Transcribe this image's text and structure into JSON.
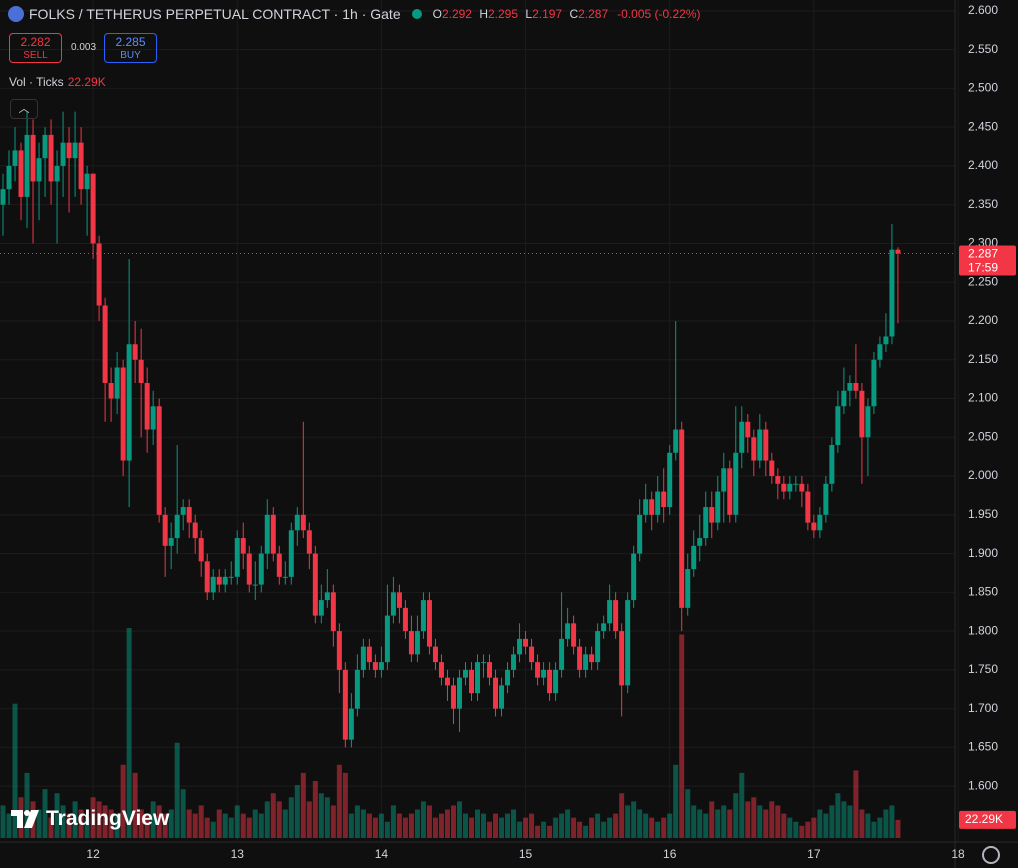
{
  "header": {
    "symbol": "FOLKS / TETHERUS PERPETUAL CONTRACT · 1h · Gate",
    "ohlc": [
      {
        "key": "O",
        "value": "2.292"
      },
      {
        "key": "H",
        "value": "2.295"
      },
      {
        "key": "L",
        "value": "2.197"
      },
      {
        "key": "C",
        "value": "2.287"
      }
    ],
    "change": "-0.005 (-0.22%)"
  },
  "trade": {
    "sell_price": "2.282",
    "sell_label": "SELL",
    "spread": "0.003",
    "buy_price": "2.285",
    "buy_label": "BUY"
  },
  "volume_legend": {
    "label": "Vol · Ticks",
    "value": "22.29K"
  },
  "brand": "TradingView",
  "chart_data": {
    "type": "candlestick",
    "up_color": "#089981",
    "down_color": "#f23645",
    "grid": true,
    "countdown": "17:59",
    "xlim": [
      -0.5,
      158.5
    ],
    "xticks": [
      {
        "value": 15,
        "label": "12"
      },
      {
        "value": 39,
        "label": "13"
      },
      {
        "value": 63,
        "label": "14"
      },
      {
        "value": 87,
        "label": "15"
      },
      {
        "value": 111,
        "label": "16"
      },
      {
        "value": 135,
        "label": "17"
      },
      {
        "value": 159,
        "label": "18"
      }
    ],
    "ylim": [
      1.528,
      2.614
    ],
    "yticks": [
      {
        "value": 1.6,
        "label": "1.600"
      },
      {
        "value": 1.65,
        "label": "1.650"
      },
      {
        "value": 1.7,
        "label": "1.700"
      },
      {
        "value": 1.75,
        "label": "1.750"
      },
      {
        "value": 1.8,
        "label": "1.800"
      },
      {
        "value": 1.85,
        "label": "1.850"
      },
      {
        "value": 1.9,
        "label": "1.900"
      },
      {
        "value": 1.95,
        "label": "1.950"
      },
      {
        "value": 2.0,
        "label": "2.000"
      },
      {
        "value": 2.05,
        "label": "2.050"
      },
      {
        "value": 2.1,
        "label": "2.100"
      },
      {
        "value": 2.15,
        "label": "2.150"
      },
      {
        "value": 2.2,
        "label": "2.200"
      },
      {
        "value": 2.25,
        "label": "2.250"
      },
      {
        "value": 2.3,
        "label": "2.300"
      },
      {
        "value": 2.35,
        "label": "2.350"
      },
      {
        "value": 2.4,
        "label": "2.400"
      },
      {
        "value": 2.45,
        "label": "2.450"
      },
      {
        "value": 2.5,
        "label": "2.500"
      },
      {
        "value": 2.55,
        "label": "2.550"
      },
      {
        "value": 2.6,
        "label": "2.600"
      }
    ],
    "candles": [
      [
        2.35,
        2.39,
        2.31,
        2.37
      ],
      [
        2.37,
        2.42,
        2.35,
        2.4
      ],
      [
        2.4,
        2.45,
        2.38,
        2.42
      ],
      [
        2.42,
        2.43,
        2.33,
        2.36
      ],
      [
        2.36,
        2.47,
        2.32,
        2.44
      ],
      [
        2.44,
        2.46,
        2.3,
        2.38
      ],
      [
        2.38,
        2.43,
        2.33,
        2.41
      ],
      [
        2.41,
        2.45,
        2.36,
        2.44
      ],
      [
        2.44,
        2.46,
        2.35,
        2.38
      ],
      [
        2.38,
        2.42,
        2.3,
        2.4
      ],
      [
        2.4,
        2.47,
        2.36,
        2.43
      ],
      [
        2.43,
        2.45,
        2.34,
        2.41
      ],
      [
        2.41,
        2.47,
        2.36,
        2.43
      ],
      [
        2.43,
        2.45,
        2.35,
        2.37
      ],
      [
        2.37,
        2.4,
        2.31,
        2.39
      ],
      [
        2.39,
        2.39,
        2.28,
        2.3
      ],
      [
        2.3,
        2.31,
        2.2,
        2.22
      ],
      [
        2.22,
        2.23,
        2.07,
        2.12
      ],
      [
        2.12,
        2.14,
        2.07,
        2.1
      ],
      [
        2.1,
        2.16,
        2.08,
        2.14
      ],
      [
        2.14,
        2.15,
        2.0,
        2.02
      ],
      [
        2.02,
        2.28,
        1.96,
        2.17
      ],
      [
        2.17,
        2.2,
        2.12,
        2.15
      ],
      [
        2.15,
        2.19,
        2.05,
        2.12
      ],
      [
        2.12,
        2.14,
        2.03,
        2.06
      ],
      [
        2.06,
        2.11,
        2.04,
        2.09
      ],
      [
        2.09,
        2.1,
        1.94,
        1.95
      ],
      [
        1.95,
        1.96,
        1.87,
        1.91
      ],
      [
        1.91,
        1.94,
        1.88,
        1.92
      ],
      [
        1.92,
        2.04,
        1.9,
        1.95
      ],
      [
        1.95,
        1.97,
        1.93,
        1.96
      ],
      [
        1.96,
        1.97,
        1.92,
        1.94
      ],
      [
        1.94,
        1.95,
        1.9,
        1.92
      ],
      [
        1.92,
        1.93,
        1.87,
        1.89
      ],
      [
        1.89,
        1.9,
        1.84,
        1.85
      ],
      [
        1.85,
        1.88,
        1.84,
        1.87
      ],
      [
        1.87,
        1.88,
        1.85,
        1.86
      ],
      [
        1.86,
        1.88,
        1.85,
        1.87
      ],
      [
        1.87,
        1.89,
        1.86,
        1.87
      ],
      [
        1.87,
        1.93,
        1.86,
        1.92
      ],
      [
        1.92,
        1.94,
        1.88,
        1.9
      ],
      [
        1.9,
        1.91,
        1.85,
        1.86
      ],
      [
        1.86,
        1.89,
        1.84,
        1.86
      ],
      [
        1.86,
        1.91,
        1.85,
        1.9
      ],
      [
        1.9,
        1.97,
        1.88,
        1.95
      ],
      [
        1.95,
        1.96,
        1.89,
        1.9
      ],
      [
        1.9,
        1.91,
        1.86,
        1.87
      ],
      [
        1.87,
        1.89,
        1.86,
        1.87
      ],
      [
        1.87,
        1.94,
        1.86,
        1.93
      ],
      [
        1.93,
        1.96,
        1.91,
        1.95
      ],
      [
        1.95,
        2.07,
        1.92,
        1.93
      ],
      [
        1.93,
        1.94,
        1.88,
        1.9
      ],
      [
        1.9,
        1.91,
        1.81,
        1.82
      ],
      [
        1.82,
        1.86,
        1.81,
        1.84
      ],
      [
        1.84,
        1.88,
        1.83,
        1.85
      ],
      [
        1.85,
        1.86,
        1.78,
        1.8
      ],
      [
        1.8,
        1.81,
        1.72,
        1.75
      ],
      [
        1.75,
        1.76,
        1.65,
        1.66
      ],
      [
        1.66,
        1.72,
        1.65,
        1.7
      ],
      [
        1.7,
        1.77,
        1.69,
        1.75
      ],
      [
        1.75,
        1.79,
        1.74,
        1.78
      ],
      [
        1.78,
        1.79,
        1.75,
        1.76
      ],
      [
        1.76,
        1.77,
        1.74,
        1.75
      ],
      [
        1.75,
        1.78,
        1.74,
        1.76
      ],
      [
        1.76,
        1.86,
        1.75,
        1.82
      ],
      [
        1.82,
        1.87,
        1.81,
        1.85
      ],
      [
        1.85,
        1.86,
        1.81,
        1.83
      ],
      [
        1.83,
        1.84,
        1.79,
        1.8
      ],
      [
        1.8,
        1.82,
        1.76,
        1.77
      ],
      [
        1.77,
        1.82,
        1.76,
        1.8
      ],
      [
        1.8,
        1.85,
        1.79,
        1.84
      ],
      [
        1.84,
        1.85,
        1.77,
        1.78
      ],
      [
        1.78,
        1.79,
        1.75,
        1.76
      ],
      [
        1.76,
        1.77,
        1.73,
        1.74
      ],
      [
        1.74,
        1.75,
        1.71,
        1.73
      ],
      [
        1.73,
        1.74,
        1.68,
        1.7
      ],
      [
        1.7,
        1.75,
        1.67,
        1.74
      ],
      [
        1.74,
        1.76,
        1.73,
        1.75
      ],
      [
        1.75,
        1.76,
        1.71,
        1.72
      ],
      [
        1.72,
        1.77,
        1.71,
        1.76
      ],
      [
        1.76,
        1.77,
        1.74,
        1.76
      ],
      [
        1.76,
        1.77,
        1.73,
        1.74
      ],
      [
        1.74,
        1.75,
        1.69,
        1.7
      ],
      [
        1.7,
        1.74,
        1.69,
        1.73
      ],
      [
        1.73,
        1.76,
        1.72,
        1.75
      ],
      [
        1.75,
        1.78,
        1.74,
        1.77
      ],
      [
        1.77,
        1.81,
        1.76,
        1.79
      ],
      [
        1.79,
        1.8,
        1.77,
        1.78
      ],
      [
        1.78,
        1.79,
        1.75,
        1.76
      ],
      [
        1.76,
        1.77,
        1.73,
        1.74
      ],
      [
        1.74,
        1.76,
        1.73,
        1.75
      ],
      [
        1.75,
        1.76,
        1.71,
        1.72
      ],
      [
        1.72,
        1.76,
        1.71,
        1.75
      ],
      [
        1.75,
        1.85,
        1.74,
        1.79
      ],
      [
        1.79,
        1.83,
        1.78,
        1.81
      ],
      [
        1.81,
        1.82,
        1.77,
        1.78
      ],
      [
        1.78,
        1.79,
        1.74,
        1.75
      ],
      [
        1.75,
        1.78,
        1.74,
        1.77
      ],
      [
        1.77,
        1.78,
        1.75,
        1.76
      ],
      [
        1.76,
        1.81,
        1.75,
        1.8
      ],
      [
        1.8,
        1.82,
        1.79,
        1.81
      ],
      [
        1.81,
        1.86,
        1.8,
        1.84
      ],
      [
        1.84,
        1.85,
        1.79,
        1.8
      ],
      [
        1.8,
        1.81,
        1.69,
        1.73
      ],
      [
        1.73,
        1.85,
        1.72,
        1.84
      ],
      [
        1.84,
        1.91,
        1.83,
        1.9
      ],
      [
        1.9,
        1.97,
        1.89,
        1.95
      ],
      [
        1.95,
        1.99,
        1.94,
        1.97
      ],
      [
        1.97,
        1.98,
        1.93,
        1.95
      ],
      [
        1.95,
        2.0,
        1.94,
        1.98
      ],
      [
        1.98,
        2.01,
        1.94,
        1.96
      ],
      [
        1.96,
        2.04,
        1.95,
        2.03
      ],
      [
        2.03,
        2.2,
        2.02,
        2.06
      ],
      [
        2.06,
        2.07,
        1.8,
        1.83
      ],
      [
        1.83,
        1.9,
        1.82,
        1.88
      ],
      [
        1.88,
        1.93,
        1.87,
        1.91
      ],
      [
        1.91,
        1.95,
        1.89,
        1.92
      ],
      [
        1.92,
        1.98,
        1.91,
        1.96
      ],
      [
        1.96,
        1.98,
        1.92,
        1.94
      ],
      [
        1.94,
        2.0,
        1.93,
        1.98
      ],
      [
        1.98,
        2.03,
        1.94,
        2.01
      ],
      [
        2.01,
        2.02,
        1.94,
        1.95
      ],
      [
        1.95,
        2.09,
        1.94,
        2.03
      ],
      [
        2.03,
        2.09,
        2.01,
        2.07
      ],
      [
        2.07,
        2.08,
        2.03,
        2.05
      ],
      [
        2.05,
        2.06,
        2.0,
        2.02
      ],
      [
        2.02,
        2.08,
        2.01,
        2.06
      ],
      [
        2.06,
        2.07,
        2.0,
        2.02
      ],
      [
        2.02,
        2.03,
        1.99,
        2.0
      ],
      [
        2.0,
        2.01,
        1.97,
        1.99
      ],
      [
        1.99,
        2.0,
        1.97,
        1.98
      ],
      [
        1.98,
        2.0,
        1.97,
        1.99
      ],
      [
        1.99,
        2.0,
        1.98,
        1.99
      ],
      [
        1.99,
        2.0,
        1.96,
        1.98
      ],
      [
        1.98,
        1.99,
        1.93,
        1.94
      ],
      [
        1.94,
        1.95,
        1.92,
        1.93
      ],
      [
        1.93,
        1.96,
        1.92,
        1.95
      ],
      [
        1.95,
        2.0,
        1.94,
        1.99
      ],
      [
        1.99,
        2.05,
        1.98,
        2.04
      ],
      [
        2.04,
        2.11,
        2.03,
        2.09
      ],
      [
        2.09,
        2.14,
        2.08,
        2.11
      ],
      [
        2.11,
        2.13,
        2.09,
        2.12
      ],
      [
        2.12,
        2.17,
        2.1,
        2.11
      ],
      [
        2.11,
        2.12,
        1.99,
        2.05
      ],
      [
        2.05,
        2.1,
        2.0,
        2.09
      ],
      [
        2.09,
        2.16,
        2.08,
        2.15
      ],
      [
        2.15,
        2.18,
        2.14,
        2.17
      ],
      [
        2.17,
        2.21,
        2.16,
        2.18
      ],
      [
        2.18,
        2.325,
        2.17,
        2.292
      ],
      [
        2.292,
        2.295,
        2.197,
        2.287
      ]
    ],
    "volume": [
      40,
      30,
      165,
      50,
      80,
      45,
      35,
      60,
      25,
      55,
      40,
      30,
      45,
      35,
      25,
      50,
      45,
      40,
      35,
      30,
      90,
      258,
      80,
      35,
      30,
      45,
      40,
      30,
      35,
      117,
      60,
      35,
      30,
      40,
      25,
      20,
      35,
      30,
      25,
      40,
      30,
      25,
      35,
      30,
      45,
      55,
      45,
      35,
      50,
      65,
      80,
      45,
      70,
      55,
      50,
      40,
      90,
      80,
      30,
      40,
      35,
      30,
      25,
      30,
      20,
      40,
      30,
      25,
      30,
      35,
      45,
      40,
      25,
      30,
      35,
      40,
      45,
      30,
      25,
      35,
      30,
      20,
      30,
      25,
      30,
      35,
      20,
      25,
      30,
      15,
      20,
      15,
      25,
      30,
      35,
      25,
      20,
      15,
      25,
      30,
      20,
      25,
      30,
      55,
      40,
      45,
      35,
      30,
      25,
      20,
      25,
      30,
      90,
      250,
      60,
      40,
      35,
      30,
      45,
      35,
      40,
      35,
      55,
      80,
      45,
      50,
      40,
      35,
      45,
      40,
      30,
      25,
      20,
      15,
      20,
      25,
      35,
      30,
      40,
      55,
      45,
      40,
      83,
      35,
      30,
      20,
      25,
      35,
      40,
      22.29
    ]
  }
}
